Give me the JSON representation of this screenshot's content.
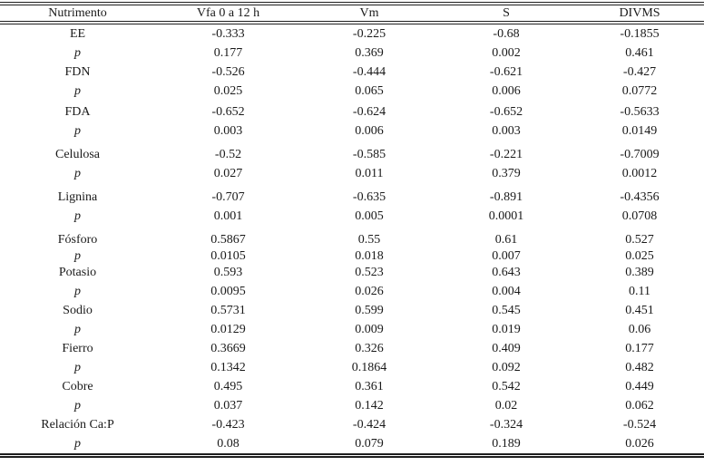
{
  "table": {
    "headers": [
      "Nutrimento",
      "Vfa 0 a 12 h",
      "Vm",
      "S",
      "DIVMS"
    ],
    "p_row_label": "p",
    "rows": [
      {
        "nutriente": "EE",
        "r": [
          "-0.333",
          "-0.225",
          "-0.68",
          "-0.1855"
        ],
        "p": [
          "0.177",
          "0.369",
          "0.002",
          "0.461"
        ]
      },
      {
        "nutriente": "FDN",
        "r": [
          "-0.526",
          "-0.444",
          "-0.621",
          "-0.427"
        ],
        "p": [
          "0.025",
          "0.065",
          "0.006",
          "0.0772"
        ]
      },
      {
        "nutriente": "FDA",
        "r": [
          "-0.652",
          "-0.624",
          "-0.652",
          "-0.5633"
        ],
        "p": [
          "0.003",
          "0.006",
          "0.003",
          "0.0149"
        ]
      },
      {
        "nutriente": "Celulosa",
        "r": [
          "-0.52",
          "-0.585",
          "-0.221",
          "-0.7009"
        ],
        "p": [
          "0.027",
          "0.011",
          "0.379",
          "0.0012"
        ]
      },
      {
        "nutriente": "Lignina",
        "r": [
          "-0.707",
          "-0.635",
          "-0.891",
          "-0.4356"
        ],
        "p": [
          "0.001",
          "0.005",
          "0.0001",
          "0.0708"
        ]
      },
      {
        "nutriente": "Fósforo",
        "r": [
          "0.5867",
          "0.55",
          "0.61",
          "0.527"
        ],
        "p": [
          "0.0105",
          "0.018",
          "0.007",
          "0.025"
        ]
      },
      {
        "nutriente": "Potasio",
        "r": [
          "0.593",
          "0.523",
          "0.643",
          "0.389"
        ],
        "p": [
          "0.0095",
          "0.026",
          "0.004",
          "0.11"
        ]
      },
      {
        "nutriente": "Sodio",
        "r": [
          "0.5731",
          "0.599",
          "0.545",
          "0.451"
        ],
        "p": [
          "0.0129",
          "0.009",
          "0.019",
          "0.06"
        ]
      },
      {
        "nutriente": "Fierro",
        "r": [
          "0.3669",
          "0.326",
          "0.409",
          "0.177"
        ],
        "p": [
          "0.1342",
          "0.1864",
          "0.092",
          "0.482"
        ]
      },
      {
        "nutriente": "Cobre",
        "r": [
          "0.495",
          "0.361",
          "0.542",
          "0.449"
        ],
        "p": [
          "0.037",
          "0.142",
          "0.02",
          "0.062"
        ]
      },
      {
        "nutriente": "Relación Ca:P",
        "r": [
          "-0.423",
          "-0.424",
          "-0.324",
          "-0.524"
        ],
        "p": [
          "0.08",
          "0.079",
          "0.189",
          "0.026"
        ]
      }
    ],
    "colors": {
      "text": "#1a1a1a",
      "rule": "#1f1f1f",
      "background": "#ffffff"
    }
  }
}
